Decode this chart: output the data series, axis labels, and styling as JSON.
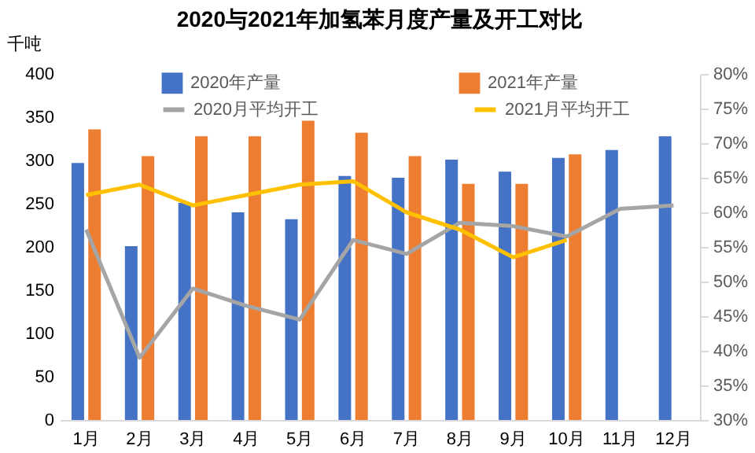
{
  "chart_data": {
    "type": "bar",
    "title": "2020与2021年加氢苯月度产量及开工对比",
    "ylabel": "千吨",
    "categories": [
      "1月",
      "2月",
      "3月",
      "4月",
      "5月",
      "6月",
      "7月",
      "8月",
      "9月",
      "10月",
      "11月",
      "12月"
    ],
    "series": [
      {
        "name": "2020年产量",
        "type": "bar",
        "color": "#4472c4",
        "values": [
          297,
          201,
          251,
          240,
          232,
          282,
          280,
          301,
          287,
          303,
          312,
          328
        ]
      },
      {
        "name": "2021年产量",
        "type": "bar",
        "color": "#ed7d31",
        "values": [
          336,
          305,
          328,
          328,
          346,
          332,
          305,
          273,
          273,
          307,
          null,
          null
        ]
      },
      {
        "name": "2020月平均开工",
        "type": "line",
        "axis": "y2",
        "color": "#a5a5a5",
        "values": [
          57.5,
          39,
          49,
          46.5,
          44.5,
          56,
          54,
          58.5,
          58,
          56.5,
          60.5,
          61
        ]
      },
      {
        "name": "2021月平均开工",
        "type": "line",
        "axis": "y2",
        "color": "#ffc000",
        "values": [
          62.5,
          64,
          61,
          62.5,
          64,
          64.5,
          60,
          57.5,
          53.5,
          56,
          null,
          null
        ]
      }
    ],
    "ylim": [
      0,
      400
    ],
    "yticks": [
      0,
      50,
      100,
      150,
      200,
      250,
      300,
      350,
      400
    ],
    "y2lim": [
      30,
      80
    ],
    "y2ticks": [
      {
        "value": 30,
        "label": "30%"
      },
      {
        "value": 35,
        "label": "35%"
      },
      {
        "value": 40,
        "label": "40%"
      },
      {
        "value": 45,
        "label": "45%"
      },
      {
        "value": 50,
        "label": "50%"
      },
      {
        "value": 55,
        "label": "55%"
      },
      {
        "value": 60,
        "label": "60%"
      },
      {
        "value": 65,
        "label": "65%"
      },
      {
        "value": 70,
        "label": "70%"
      },
      {
        "value": 75,
        "label": "75%"
      },
      {
        "value": 80,
        "label": "80%"
      }
    ],
    "grid": false,
    "legend": "top",
    "line_style": "solid",
    "marker": "none"
  }
}
